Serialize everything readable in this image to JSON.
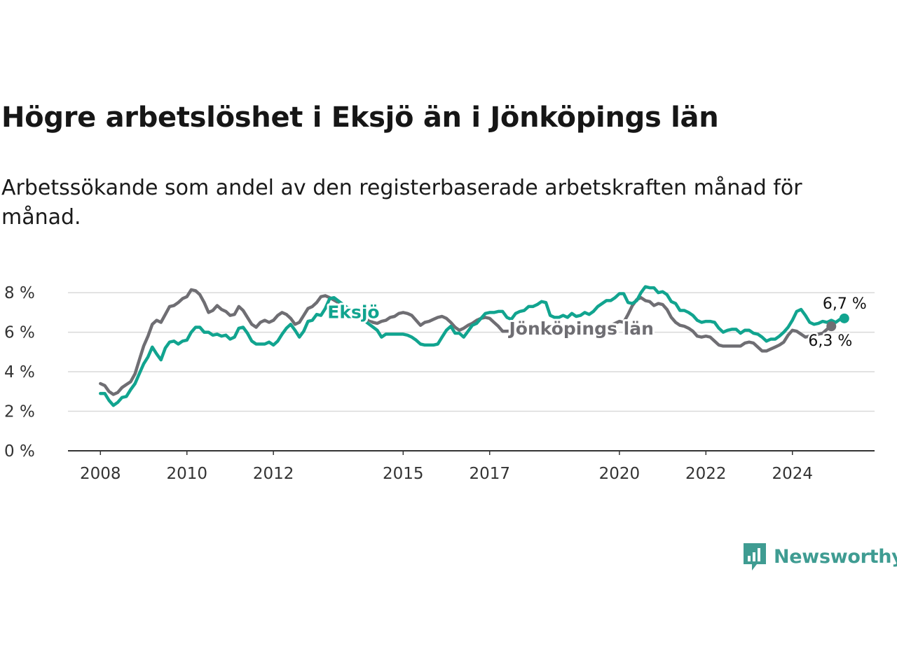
{
  "title": "Högre arbetslöshet i Eksjö än i Jönköpings län",
  "subtitle": "Arbetssökande som andel av den registerbaserade arbetskraften månad för månad.",
  "brand": {
    "name": "Newsworthy",
    "icon": "newsworthy-logo-icon",
    "color": "#3f9c92"
  },
  "chart_data": {
    "type": "line",
    "y_ticks": [
      0,
      2,
      4,
      6,
      8
    ],
    "y_tick_labels": [
      "0 %",
      "2 %",
      "4 %",
      "6 %",
      "8 %"
    ],
    "ylim": [
      0,
      8.5
    ],
    "x_ticks": [
      2008,
      2010,
      2012,
      2015,
      2017,
      2020,
      2022,
      2024
    ],
    "x_tick_labels": [
      "2008",
      "2010",
      "2012",
      "2015",
      "2017",
      "2020",
      "2022",
      "2024"
    ],
    "xlim": [
      2007.25,
      2025.9
    ],
    "grid": "horizontal",
    "series": [
      {
        "name": "Jönköpings län",
        "color": "#6f6e73",
        "end_label": "6,3 %",
        "points": [
          [
            2008.0,
            3.4
          ],
          [
            2008.1,
            3.3
          ],
          [
            2008.2,
            3.0
          ],
          [
            2008.3,
            2.85
          ],
          [
            2008.4,
            2.95
          ],
          [
            2008.5,
            3.2
          ],
          [
            2008.6,
            3.35
          ],
          [
            2008.7,
            3.5
          ],
          [
            2008.8,
            3.9
          ],
          [
            2008.9,
            4.6
          ],
          [
            2009.0,
            5.3
          ],
          [
            2009.1,
            5.8
          ],
          [
            2009.2,
            6.4
          ],
          [
            2009.3,
            6.6
          ],
          [
            2009.4,
            6.5
          ],
          [
            2009.5,
            6.9
          ],
          [
            2009.6,
            7.3
          ],
          [
            2009.7,
            7.35
          ],
          [
            2009.8,
            7.5
          ],
          [
            2009.9,
            7.7
          ],
          [
            2010.0,
            7.8
          ],
          [
            2010.1,
            8.15
          ],
          [
            2010.2,
            8.1
          ],
          [
            2010.3,
            7.9
          ],
          [
            2010.4,
            7.5
          ],
          [
            2010.5,
            7.0
          ],
          [
            2010.6,
            7.1
          ],
          [
            2010.7,
            7.35
          ],
          [
            2010.8,
            7.15
          ],
          [
            2010.9,
            7.05
          ],
          [
            2011.0,
            6.85
          ],
          [
            2011.1,
            6.9
          ],
          [
            2011.2,
            7.3
          ],
          [
            2011.3,
            7.1
          ],
          [
            2011.4,
            6.75
          ],
          [
            2011.5,
            6.4
          ],
          [
            2011.6,
            6.25
          ],
          [
            2011.7,
            6.5
          ],
          [
            2011.8,
            6.6
          ],
          [
            2011.9,
            6.5
          ],
          [
            2012.0,
            6.6
          ],
          [
            2012.1,
            6.85
          ],
          [
            2012.2,
            7.0
          ],
          [
            2012.3,
            6.9
          ],
          [
            2012.4,
            6.7
          ],
          [
            2012.5,
            6.4
          ],
          [
            2012.6,
            6.5
          ],
          [
            2012.7,
            6.85
          ],
          [
            2012.8,
            7.2
          ],
          [
            2012.9,
            7.3
          ],
          [
            2013.0,
            7.5
          ],
          [
            2013.1,
            7.8
          ],
          [
            2013.2,
            7.85
          ],
          [
            2013.3,
            7.75
          ],
          [
            2014.3,
            6.5
          ],
          [
            2014.4,
            6.45
          ],
          [
            2014.5,
            6.55
          ],
          [
            2014.6,
            6.6
          ],
          [
            2014.7,
            6.75
          ],
          [
            2014.8,
            6.8
          ],
          [
            2014.9,
            6.95
          ],
          [
            2015.0,
            7.0
          ],
          [
            2015.1,
            6.95
          ],
          [
            2015.2,
            6.85
          ],
          [
            2015.3,
            6.6
          ],
          [
            2015.4,
            6.35
          ],
          [
            2015.5,
            6.5
          ],
          [
            2015.6,
            6.55
          ],
          [
            2015.7,
            6.65
          ],
          [
            2015.8,
            6.75
          ],
          [
            2015.9,
            6.8
          ],
          [
            2016.0,
            6.7
          ],
          [
            2016.1,
            6.5
          ],
          [
            2016.2,
            6.25
          ],
          [
            2016.3,
            6.1
          ],
          [
            2016.4,
            6.2
          ],
          [
            2016.5,
            6.35
          ],
          [
            2016.6,
            6.45
          ],
          [
            2016.7,
            6.6
          ],
          [
            2016.8,
            6.7
          ],
          [
            2016.9,
            6.75
          ],
          [
            2017.0,
            6.7
          ],
          [
            2017.1,
            6.5
          ],
          [
            2017.2,
            6.3
          ],
          [
            2017.3,
            6.05
          ],
          [
            2019.7,
            6.15
          ],
          [
            2019.8,
            6.35
          ],
          [
            2019.9,
            6.45
          ],
          [
            2020.0,
            6.55
          ],
          [
            2020.1,
            6.5
          ],
          [
            2020.2,
            6.9
          ],
          [
            2020.3,
            7.35
          ],
          [
            2020.4,
            7.65
          ],
          [
            2020.5,
            7.75
          ],
          [
            2020.6,
            7.6
          ],
          [
            2020.7,
            7.55
          ],
          [
            2020.8,
            7.35
          ],
          [
            2020.9,
            7.45
          ],
          [
            2021.0,
            7.4
          ],
          [
            2021.1,
            7.15
          ],
          [
            2021.2,
            6.75
          ],
          [
            2021.3,
            6.5
          ],
          [
            2021.4,
            6.35
          ],
          [
            2021.5,
            6.3
          ],
          [
            2021.6,
            6.2
          ],
          [
            2021.7,
            6.05
          ],
          [
            2021.8,
            5.8
          ],
          [
            2021.9,
            5.75
          ],
          [
            2022.0,
            5.8
          ],
          [
            2022.1,
            5.75
          ],
          [
            2022.2,
            5.55
          ],
          [
            2022.3,
            5.35
          ],
          [
            2022.4,
            5.3
          ],
          [
            2022.5,
            5.3
          ],
          [
            2022.6,
            5.3
          ],
          [
            2022.7,
            5.3
          ],
          [
            2022.8,
            5.3
          ],
          [
            2022.9,
            5.45
          ],
          [
            2023.0,
            5.5
          ],
          [
            2023.1,
            5.45
          ],
          [
            2023.2,
            5.25
          ],
          [
            2023.3,
            5.05
          ],
          [
            2023.4,
            5.05
          ],
          [
            2023.5,
            5.15
          ],
          [
            2023.6,
            5.25
          ],
          [
            2023.7,
            5.35
          ],
          [
            2023.8,
            5.5
          ],
          [
            2023.9,
            5.85
          ],
          [
            2024.0,
            6.1
          ],
          [
            2024.1,
            6.05
          ],
          [
            2024.2,
            5.9
          ],
          [
            2024.3,
            5.75
          ],
          [
            2024.7,
            5.95
          ],
          [
            2024.8,
            6.15
          ],
          [
            2024.9,
            6.3
          ]
        ]
      },
      {
        "name": "Eksjö",
        "color": "#11a48f",
        "end_label": "6,7 %",
        "points": [
          [
            2008.0,
            2.9
          ],
          [
            2008.1,
            2.9
          ],
          [
            2008.2,
            2.55
          ],
          [
            2008.3,
            2.3
          ],
          [
            2008.4,
            2.45
          ],
          [
            2008.5,
            2.7
          ],
          [
            2008.6,
            2.75
          ],
          [
            2008.7,
            3.1
          ],
          [
            2008.8,
            3.4
          ],
          [
            2008.9,
            3.9
          ],
          [
            2009.0,
            4.4
          ],
          [
            2009.1,
            4.75
          ],
          [
            2009.2,
            5.25
          ],
          [
            2009.3,
            4.9
          ],
          [
            2009.4,
            4.6
          ],
          [
            2009.5,
            5.2
          ],
          [
            2009.6,
            5.5
          ],
          [
            2009.7,
            5.55
          ],
          [
            2009.8,
            5.4
          ],
          [
            2009.9,
            5.55
          ],
          [
            2010.0,
            5.6
          ],
          [
            2010.1,
            6.0
          ],
          [
            2010.2,
            6.25
          ],
          [
            2010.3,
            6.25
          ],
          [
            2010.4,
            6.0
          ],
          [
            2010.5,
            6.0
          ],
          [
            2010.6,
            5.85
          ],
          [
            2010.7,
            5.9
          ],
          [
            2010.8,
            5.8
          ],
          [
            2010.9,
            5.85
          ],
          [
            2011.0,
            5.65
          ],
          [
            2011.1,
            5.75
          ],
          [
            2011.2,
            6.2
          ],
          [
            2011.3,
            6.25
          ],
          [
            2011.4,
            5.95
          ],
          [
            2011.5,
            5.55
          ],
          [
            2011.6,
            5.4
          ],
          [
            2011.7,
            5.4
          ],
          [
            2011.8,
            5.4
          ],
          [
            2011.9,
            5.5
          ],
          [
            2012.0,
            5.35
          ],
          [
            2012.1,
            5.55
          ],
          [
            2012.2,
            5.9
          ],
          [
            2012.3,
            6.2
          ],
          [
            2012.4,
            6.4
          ],
          [
            2012.5,
            6.1
          ],
          [
            2012.6,
            5.75
          ],
          [
            2012.7,
            6.05
          ],
          [
            2012.8,
            6.55
          ],
          [
            2012.9,
            6.6
          ],
          [
            2013.0,
            6.9
          ],
          [
            2013.1,
            6.85
          ],
          [
            2013.2,
            7.2
          ],
          [
            2013.3,
            7.7
          ],
          [
            2013.4,
            7.75
          ],
          [
            2014.4,
            6.1
          ],
          [
            2014.5,
            5.75
          ],
          [
            2014.6,
            5.9
          ],
          [
            2014.7,
            5.9
          ],
          [
            2014.8,
            5.9
          ],
          [
            2014.9,
            5.9
          ],
          [
            2015.0,
            5.9
          ],
          [
            2015.1,
            5.85
          ],
          [
            2015.2,
            5.75
          ],
          [
            2015.3,
            5.6
          ],
          [
            2015.4,
            5.4
          ],
          [
            2015.5,
            5.35
          ],
          [
            2015.6,
            5.35
          ],
          [
            2015.7,
            5.35
          ],
          [
            2015.8,
            5.4
          ],
          [
            2015.9,
            5.75
          ],
          [
            2016.0,
            6.1
          ],
          [
            2016.1,
            6.3
          ],
          [
            2016.2,
            5.95
          ],
          [
            2016.3,
            5.95
          ],
          [
            2016.4,
            5.75
          ],
          [
            2016.5,
            6.05
          ],
          [
            2016.6,
            6.35
          ],
          [
            2016.7,
            6.45
          ],
          [
            2016.8,
            6.7
          ],
          [
            2016.9,
            6.95
          ],
          [
            2017.0,
            7.0
          ],
          [
            2017.1,
            7.0
          ],
          [
            2017.2,
            7.05
          ],
          [
            2017.3,
            7.05
          ],
          [
            2017.4,
            6.75
          ],
          [
            2017.5,
            6.65
          ],
          [
            2017.6,
            6.95
          ],
          [
            2017.7,
            7.05
          ],
          [
            2017.8,
            7.1
          ],
          [
            2017.9,
            7.3
          ],
          [
            2018.0,
            7.3
          ],
          [
            2018.1,
            7.4
          ],
          [
            2018.2,
            7.55
          ],
          [
            2018.3,
            7.5
          ],
          [
            2018.4,
            6.85
          ],
          [
            2018.5,
            6.75
          ],
          [
            2018.6,
            6.75
          ],
          [
            2018.7,
            6.85
          ],
          [
            2018.8,
            6.75
          ],
          [
            2018.9,
            6.95
          ],
          [
            2019.0,
            6.8
          ],
          [
            2019.1,
            6.85
          ],
          [
            2019.2,
            7.0
          ],
          [
            2019.3,
            6.9
          ],
          [
            2019.4,
            7.05
          ],
          [
            2019.5,
            7.3
          ],
          [
            2019.6,
            7.45
          ],
          [
            2019.7,
            7.6
          ],
          [
            2019.8,
            7.6
          ],
          [
            2019.9,
            7.75
          ],
          [
            2020.0,
            7.95
          ],
          [
            2020.1,
            7.95
          ],
          [
            2020.2,
            7.5
          ],
          [
            2020.3,
            7.45
          ],
          [
            2020.4,
            7.6
          ],
          [
            2020.5,
            8.0
          ],
          [
            2020.6,
            8.3
          ],
          [
            2020.7,
            8.25
          ],
          [
            2020.8,
            8.25
          ],
          [
            2020.9,
            8.0
          ],
          [
            2021.0,
            8.05
          ],
          [
            2021.1,
            7.9
          ],
          [
            2021.2,
            7.55
          ],
          [
            2021.3,
            7.45
          ],
          [
            2021.4,
            7.1
          ],
          [
            2021.5,
            7.1
          ],
          [
            2021.6,
            7.0
          ],
          [
            2021.7,
            6.85
          ],
          [
            2021.8,
            6.6
          ],
          [
            2021.9,
            6.5
          ],
          [
            2022.0,
            6.55
          ],
          [
            2022.1,
            6.55
          ],
          [
            2022.2,
            6.5
          ],
          [
            2022.3,
            6.2
          ],
          [
            2022.4,
            6.0
          ],
          [
            2022.5,
            6.1
          ],
          [
            2022.6,
            6.15
          ],
          [
            2022.7,
            6.15
          ],
          [
            2022.8,
            5.95
          ],
          [
            2022.9,
            6.1
          ],
          [
            2023.0,
            6.1
          ],
          [
            2023.1,
            5.95
          ],
          [
            2023.2,
            5.9
          ],
          [
            2023.3,
            5.75
          ],
          [
            2023.4,
            5.55
          ],
          [
            2023.5,
            5.65
          ],
          [
            2023.6,
            5.65
          ],
          [
            2023.7,
            5.8
          ],
          [
            2023.8,
            6.0
          ],
          [
            2023.9,
            6.25
          ],
          [
            2024.0,
            6.6
          ],
          [
            2024.1,
            7.05
          ],
          [
            2024.2,
            7.15
          ],
          [
            2024.3,
            6.85
          ],
          [
            2024.4,
            6.5
          ],
          [
            2024.5,
            6.4
          ],
          [
            2024.6,
            6.45
          ],
          [
            2024.7,
            6.55
          ],
          [
            2024.8,
            6.5
          ],
          [
            2024.9,
            6.6
          ],
          [
            2025.0,
            6.5
          ],
          [
            2025.1,
            6.65
          ],
          [
            2025.2,
            6.7
          ]
        ]
      }
    ]
  }
}
